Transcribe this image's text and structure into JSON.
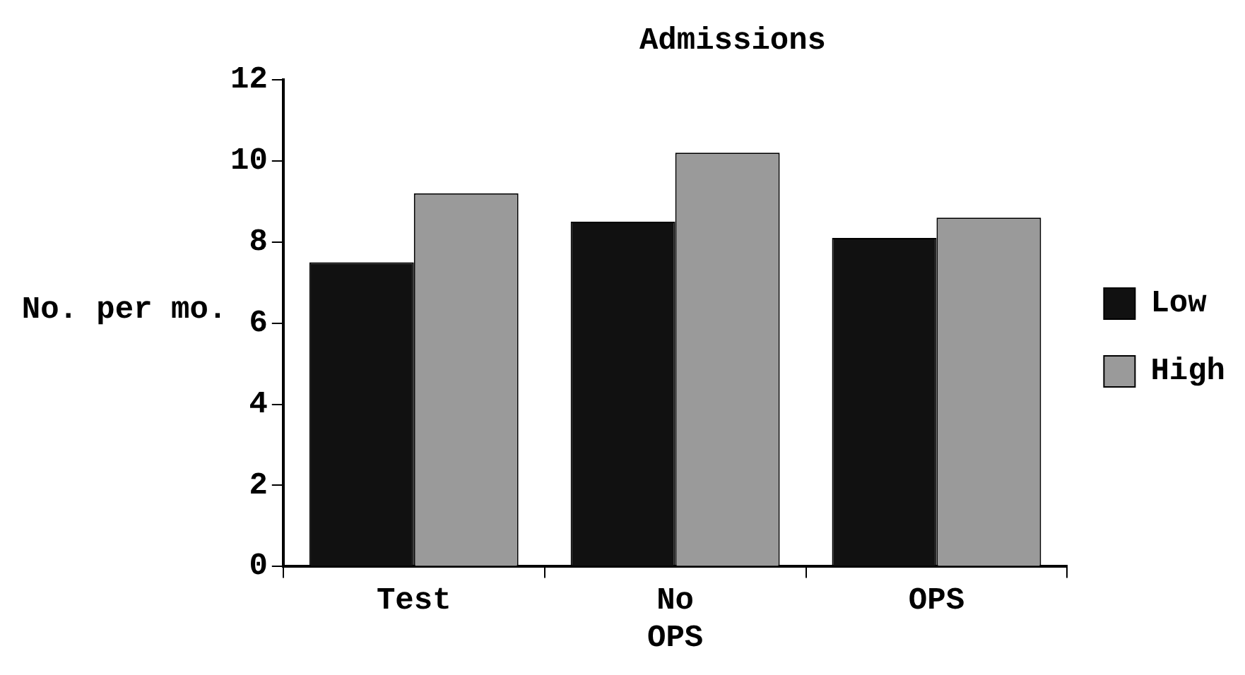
{
  "chart_data": {
    "type": "bar",
    "title": "Admissions",
    "ylabel": "No. per mo.",
    "categories": [
      "Test",
      "No OPS",
      "OPS"
    ],
    "series": [
      {
        "name": "Low",
        "color": "#111111",
        "values": [
          7.5,
          8.5,
          8.1
        ]
      },
      {
        "name": "High",
        "color": "#9a9a9a",
        "values": [
          9.2,
          10.2,
          8.6
        ]
      }
    ],
    "ylim": [
      0,
      12
    ],
    "yticks": [
      0,
      2,
      4,
      6,
      8,
      10,
      12
    ],
    "grid": false,
    "legend": "right"
  }
}
